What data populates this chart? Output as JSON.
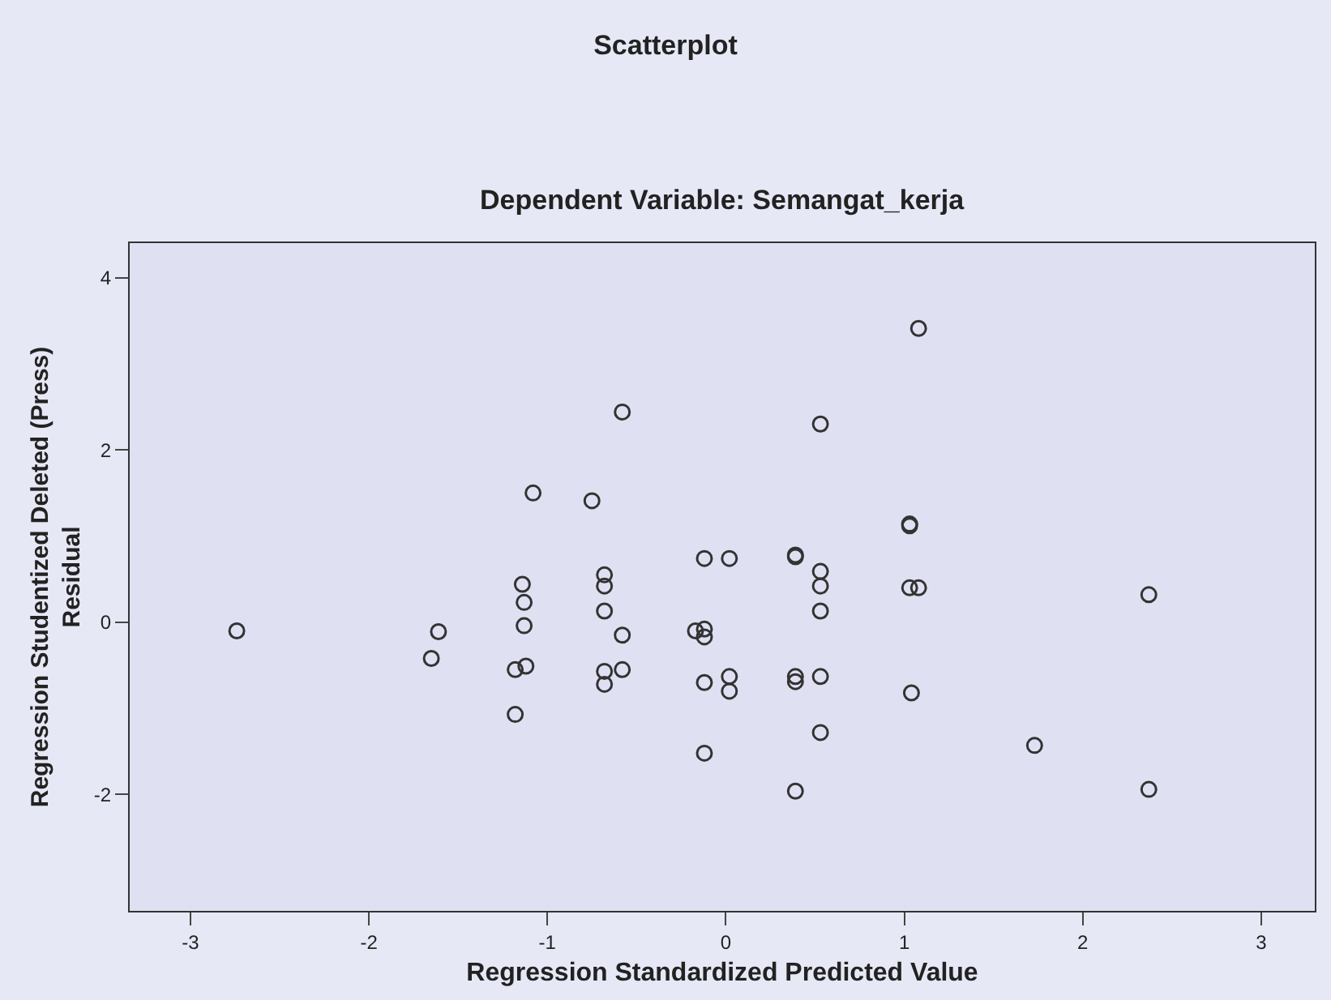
{
  "chart_data": {
    "type": "scatter",
    "title": "Scatterplot",
    "subtitle": "Dependent Variable: Semangat_kerja",
    "xlabel": "Regression Standardized Predicted Value",
    "ylabel": "Regression Studentized Deleted (Press)\nResidual",
    "x": [
      -2.74,
      -1.61,
      -1.65,
      -1.08,
      -1.14,
      -1.13,
      -1.13,
      -1.12,
      -1.18,
      -1.18,
      -0.75,
      -0.68,
      -0.68,
      -0.68,
      -0.58,
      -0.68,
      -0.68,
      -0.58,
      -0.58,
      -0.12,
      0.02,
      -0.17,
      -0.12,
      -0.12,
      -0.12,
      0.02,
      0.02,
      -0.12,
      0.39,
      0.39,
      0.53,
      0.53,
      0.53,
      0.39,
      0.39,
      0.53,
      0.53,
      0.39,
      0.53,
      1.08,
      1.03,
      1.03,
      1.03,
      1.08,
      1.04,
      1.73,
      2.37,
      2.37
    ],
    "series": [
      {
        "color": "#333333",
        "values": [
          -0.1,
          -0.11,
          -0.42,
          1.5,
          0.44,
          0.23,
          -0.04,
          -0.51,
          -0.55,
          -1.07,
          1.41,
          0.55,
          0.42,
          0.13,
          -0.15,
          -0.57,
          -0.72,
          -0.55,
          2.44,
          0.74,
          0.74,
          -0.1,
          -0.08,
          -0.17,
          -0.7,
          -0.63,
          -0.8,
          -1.52,
          0.78,
          0.76,
          0.59,
          0.42,
          0.13,
          -0.63,
          -0.69,
          -0.63,
          -1.28,
          -1.96,
          2.3,
          3.41,
          1.14,
          1.12,
          0.4,
          0.4,
          -0.82,
          -1.43,
          0.32,
          -1.94
        ]
      }
    ],
    "xlim": [
      -3.34,
      3.3
    ],
    "xticks": [
      -3,
      -2,
      -1,
      0,
      1,
      2,
      3
    ],
    "ylim": [
      -3.35,
      4.4
    ],
    "yticks": [
      -2,
      0,
      2,
      4
    ],
    "grid": false,
    "marker": "circle"
  }
}
